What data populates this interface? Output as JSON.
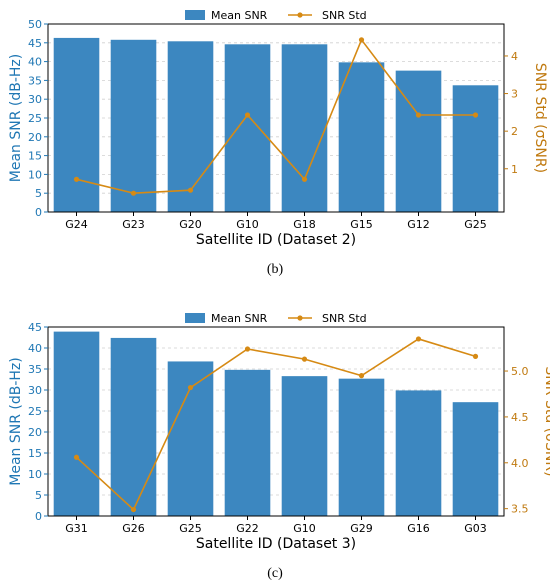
{
  "panels": [
    {
      "caption": "(b)",
      "chart_data": {
        "type": "bar",
        "categories": [
          "G24",
          "G23",
          "G20",
          "G10",
          "G18",
          "G15",
          "G12",
          "G25"
        ],
        "series": [
          {
            "name": "Mean SNR",
            "type": "bar",
            "axis": "left",
            "color": "#3c87c0",
            "values": [
              46.3,
              45.8,
              45.4,
              44.6,
              44.6,
              39.8,
              37.6,
              33.7
            ]
          },
          {
            "name": "SNR Std",
            "type": "line",
            "axis": "right",
            "color": "#d68a14",
            "values": [
              0.72,
              0.35,
              0.43,
              2.43,
              0.72,
              4.43,
              2.43,
              2.43
            ]
          }
        ],
        "xlabel": "Satellite ID (Dataset 2)",
        "ylabel": "Mean SNR (dB-Hz)",
        "y2label": "SNR Std (σSNR)",
        "ylim": [
          0,
          50
        ],
        "y2lim": [
          -0.15,
          4.85
        ],
        "yticks": [
          0,
          5,
          10,
          15,
          20,
          25,
          30,
          35,
          40,
          45,
          50
        ],
        "y2ticks": [
          1,
          2,
          3,
          4
        ],
        "grid": true,
        "legend": "top-center"
      }
    },
    {
      "caption": "(c)",
      "chart_data": {
        "type": "bar",
        "categories": [
          "G31",
          "G26",
          "G25",
          "G22",
          "G10",
          "G29",
          "G16",
          "G03"
        ],
        "series": [
          {
            "name": "Mean SNR",
            "type": "bar",
            "axis": "left",
            "color": "#3c87c0",
            "values": [
              43.9,
              42.4,
              36.8,
              34.8,
              33.3,
              32.7,
              29.9,
              27.1
            ]
          },
          {
            "name": "SNR Std",
            "type": "line",
            "axis": "right",
            "color": "#d68a14",
            "values": [
              4.06,
              3.49,
              4.82,
              5.24,
              5.13,
              4.95,
              5.35,
              5.16
            ]
          }
        ],
        "xlabel": "Satellite ID (Dataset 3)",
        "ylabel": "Mean SNR (dB-Hz)",
        "y2label": "SNR Std (σSNR)",
        "ylim": [
          0,
          45
        ],
        "y2lim": [
          3.42,
          5.48
        ],
        "yticks": [
          0,
          5,
          10,
          15,
          20,
          25,
          30,
          35,
          40,
          45
        ],
        "y2ticks": [
          3.5,
          4.0,
          4.5,
          5.0
        ],
        "y2tick_labels": [
          "3.5",
          "4.0",
          "4.5",
          "5.0"
        ],
        "grid": true,
        "legend": "top-center"
      }
    }
  ]
}
